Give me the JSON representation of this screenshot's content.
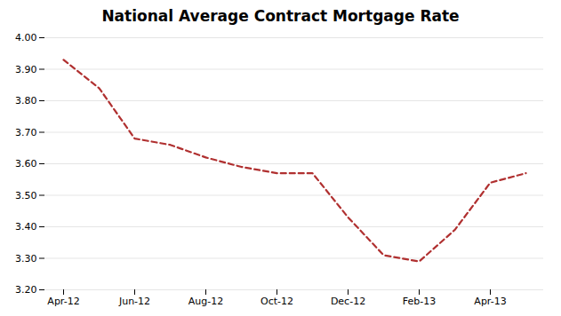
{
  "chart_data": {
    "type": "line",
    "title": "National Average Contract Mortgage Rate",
    "categories": [
      "Apr-12",
      null,
      "Jun-12",
      null,
      "Aug-12",
      null,
      "Oct-12",
      null,
      "Dec-12",
      null,
      "Feb-13",
      null,
      "Apr-13",
      null
    ],
    "values": [
      3.93,
      3.84,
      3.68,
      3.66,
      3.62,
      3.59,
      3.57,
      3.57,
      3.43,
      3.31,
      3.29,
      3.39,
      3.54,
      3.57
    ],
    "color": "#b03030",
    "line_style": "dashed",
    "ylim": [
      3.2,
      4.0
    ],
    "yticks": [
      {
        "value": 3.2,
        "label": "3.20"
      },
      {
        "value": 3.3,
        "label": "3.30"
      },
      {
        "value": 3.4,
        "label": "3.40"
      },
      {
        "value": 3.5,
        "label": "3.50"
      },
      {
        "value": 3.6,
        "label": "3.60"
      },
      {
        "value": 3.7,
        "label": "3.70"
      },
      {
        "value": 3.8,
        "label": "3.80"
      },
      {
        "value": 3.9,
        "label": "3.90"
      },
      {
        "value": 4.0,
        "label": "4.00"
      }
    ],
    "grid": true
  }
}
